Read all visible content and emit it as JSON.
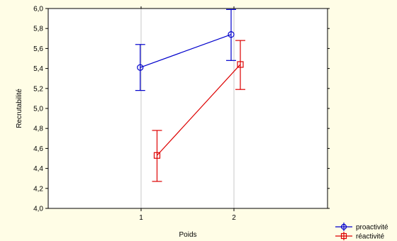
{
  "chart_data": {
    "type": "line",
    "title": "",
    "xlabel": "Poids",
    "ylabel": "Recrutabilité",
    "x": [
      "1",
      "2"
    ],
    "ylim": [
      4.0,
      6.0
    ],
    "yticks": [
      "4,0",
      "4,2",
      "4,4",
      "4,6",
      "4,8",
      "5,0",
      "5,2",
      "5,4",
      "5,6",
      "5,8",
      "6,0"
    ],
    "grid": true,
    "legend_position": "bottom-right",
    "series": [
      {
        "name": "proactivité",
        "color": "#0000cc",
        "marker": "circle",
        "values": [
          5.41,
          5.74
        ],
        "error_low": [
          5.18,
          5.48
        ],
        "error_high": [
          5.64,
          5.99
        ]
      },
      {
        "name": "réactivité",
        "color": "#dd0000",
        "marker": "square",
        "values": [
          4.53,
          5.44
        ],
        "error_low": [
          4.27,
          5.19
        ],
        "error_high": [
          4.78,
          5.68
        ]
      }
    ]
  }
}
